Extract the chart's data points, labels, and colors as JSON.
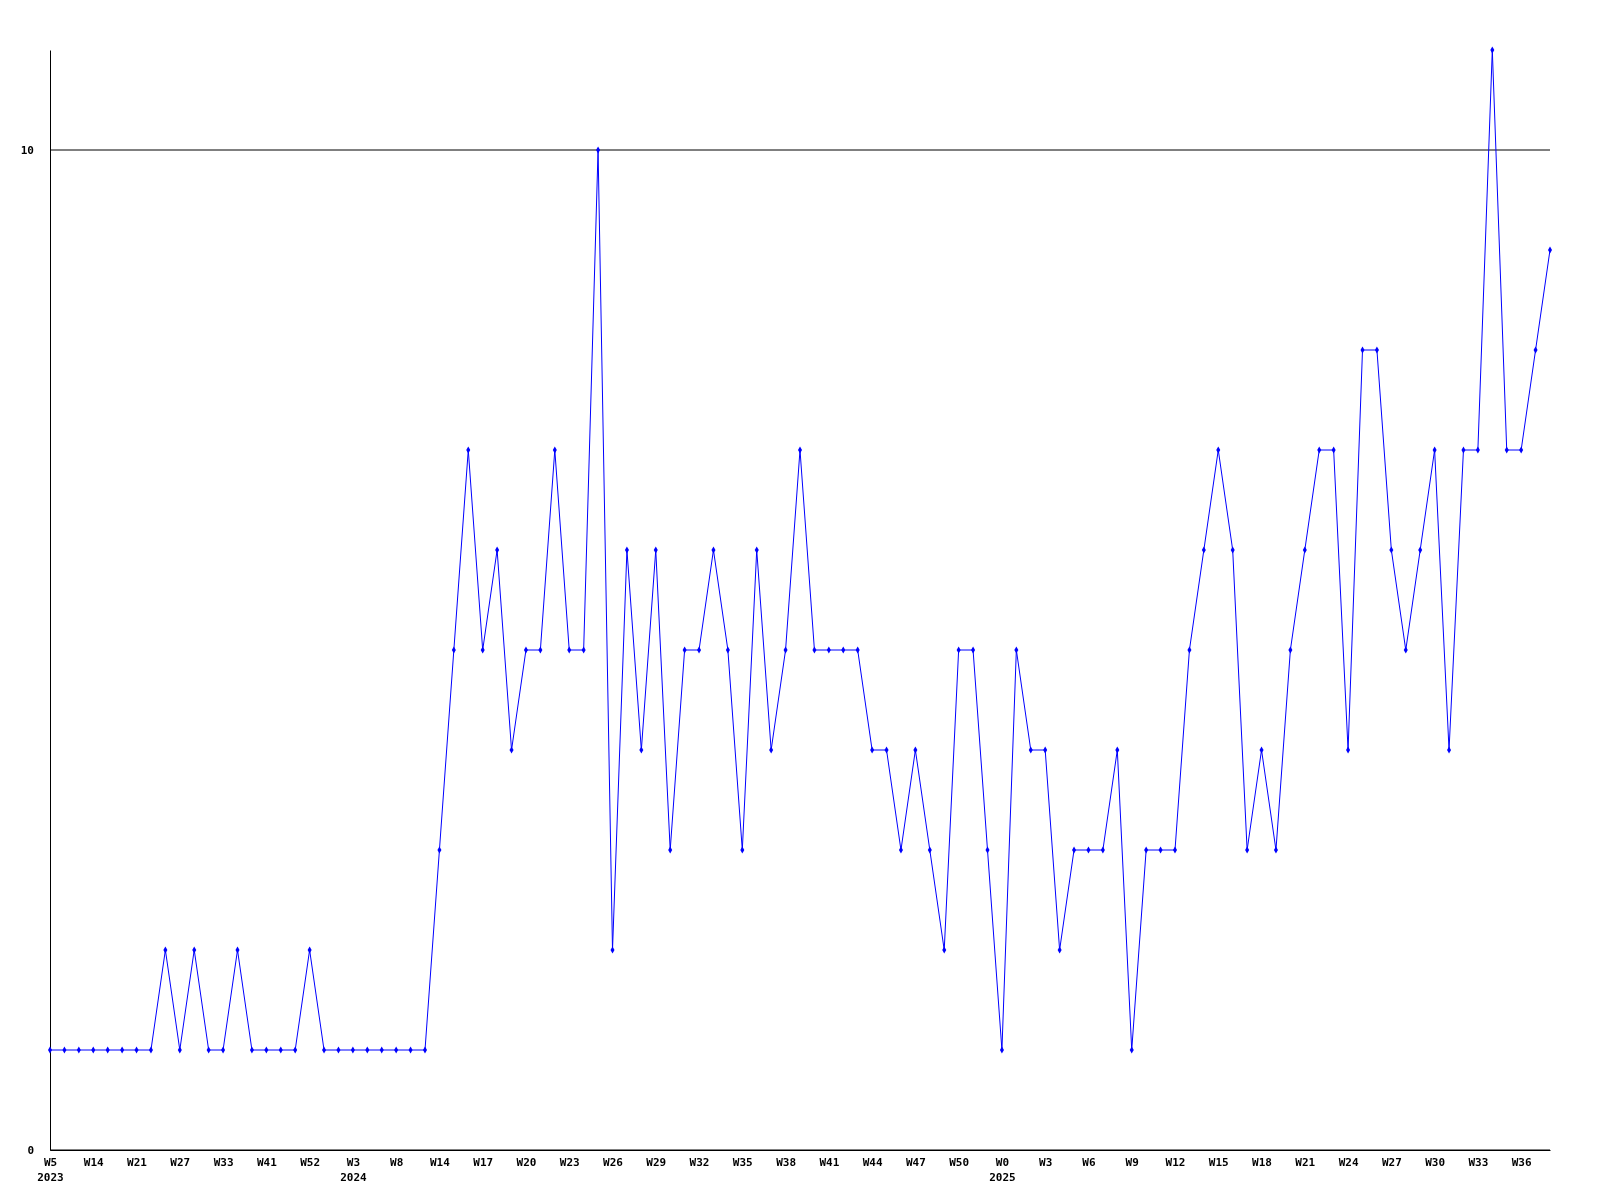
{
  "chart_data": {
    "type": "line",
    "categories": [
      "W5\n2023",
      null,
      null,
      "W14",
      null,
      null,
      "W21",
      null,
      null,
      "W27",
      null,
      null,
      "W33",
      null,
      null,
      "W41",
      null,
      null,
      "W52",
      null,
      null,
      "W3\n2024",
      null,
      null,
      "W8",
      null,
      null,
      "W14",
      null,
      null,
      "W17",
      null,
      null,
      "W20",
      null,
      null,
      "W23",
      null,
      null,
      "W26",
      null,
      null,
      "W29",
      null,
      null,
      "W32",
      null,
      null,
      "W35",
      null,
      null,
      "W38",
      null,
      null,
      "W41",
      null,
      null,
      "W44",
      null,
      null,
      "W47",
      null,
      null,
      "W50",
      null,
      null,
      "W0\n2025",
      null,
      null,
      "W3",
      null,
      null,
      "W6",
      null,
      null,
      "W9",
      null,
      null,
      "W12",
      null,
      null,
      "W15",
      null,
      null,
      "W18",
      null,
      null,
      "W21",
      null,
      null,
      "W24",
      null,
      null,
      "W27",
      null,
      null,
      "W30",
      null,
      null,
      "W33",
      null,
      null,
      "W36",
      null,
      null
    ],
    "series": [
      {
        "color": "#0000ff",
        "values": [
          1,
          1,
          1,
          1,
          1,
          1,
          1,
          1,
          2,
          1,
          2,
          1,
          1,
          2,
          1,
          1,
          1,
          1,
          2,
          1,
          1,
          1,
          1,
          1,
          1,
          1,
          1,
          3,
          5,
          7,
          5,
          6,
          4,
          5,
          5,
          7,
          5,
          5,
          10,
          2,
          6,
          4,
          6,
          3,
          5,
          5,
          6,
          5,
          3,
          6,
          4,
          5,
          7,
          5,
          5,
          5,
          5,
          4,
          4,
          3,
          4,
          3,
          2,
          5,
          5,
          3,
          1,
          5,
          4,
          4,
          2,
          3,
          3,
          3,
          4,
          1,
          3,
          3,
          3,
          5,
          6,
          7,
          6,
          3,
          4,
          3,
          5,
          6,
          7,
          7,
          4,
          8,
          8,
          6,
          5,
          6,
          7,
          4,
          7,
          7,
          11,
          7,
          7,
          8,
          9
        ]
      }
    ],
    "ylim": [
      0,
      11
    ],
    "yticks": [
      0,
      10
    ],
    "grid": "y",
    "marker": "diamond",
    "line_style": "solid"
  }
}
